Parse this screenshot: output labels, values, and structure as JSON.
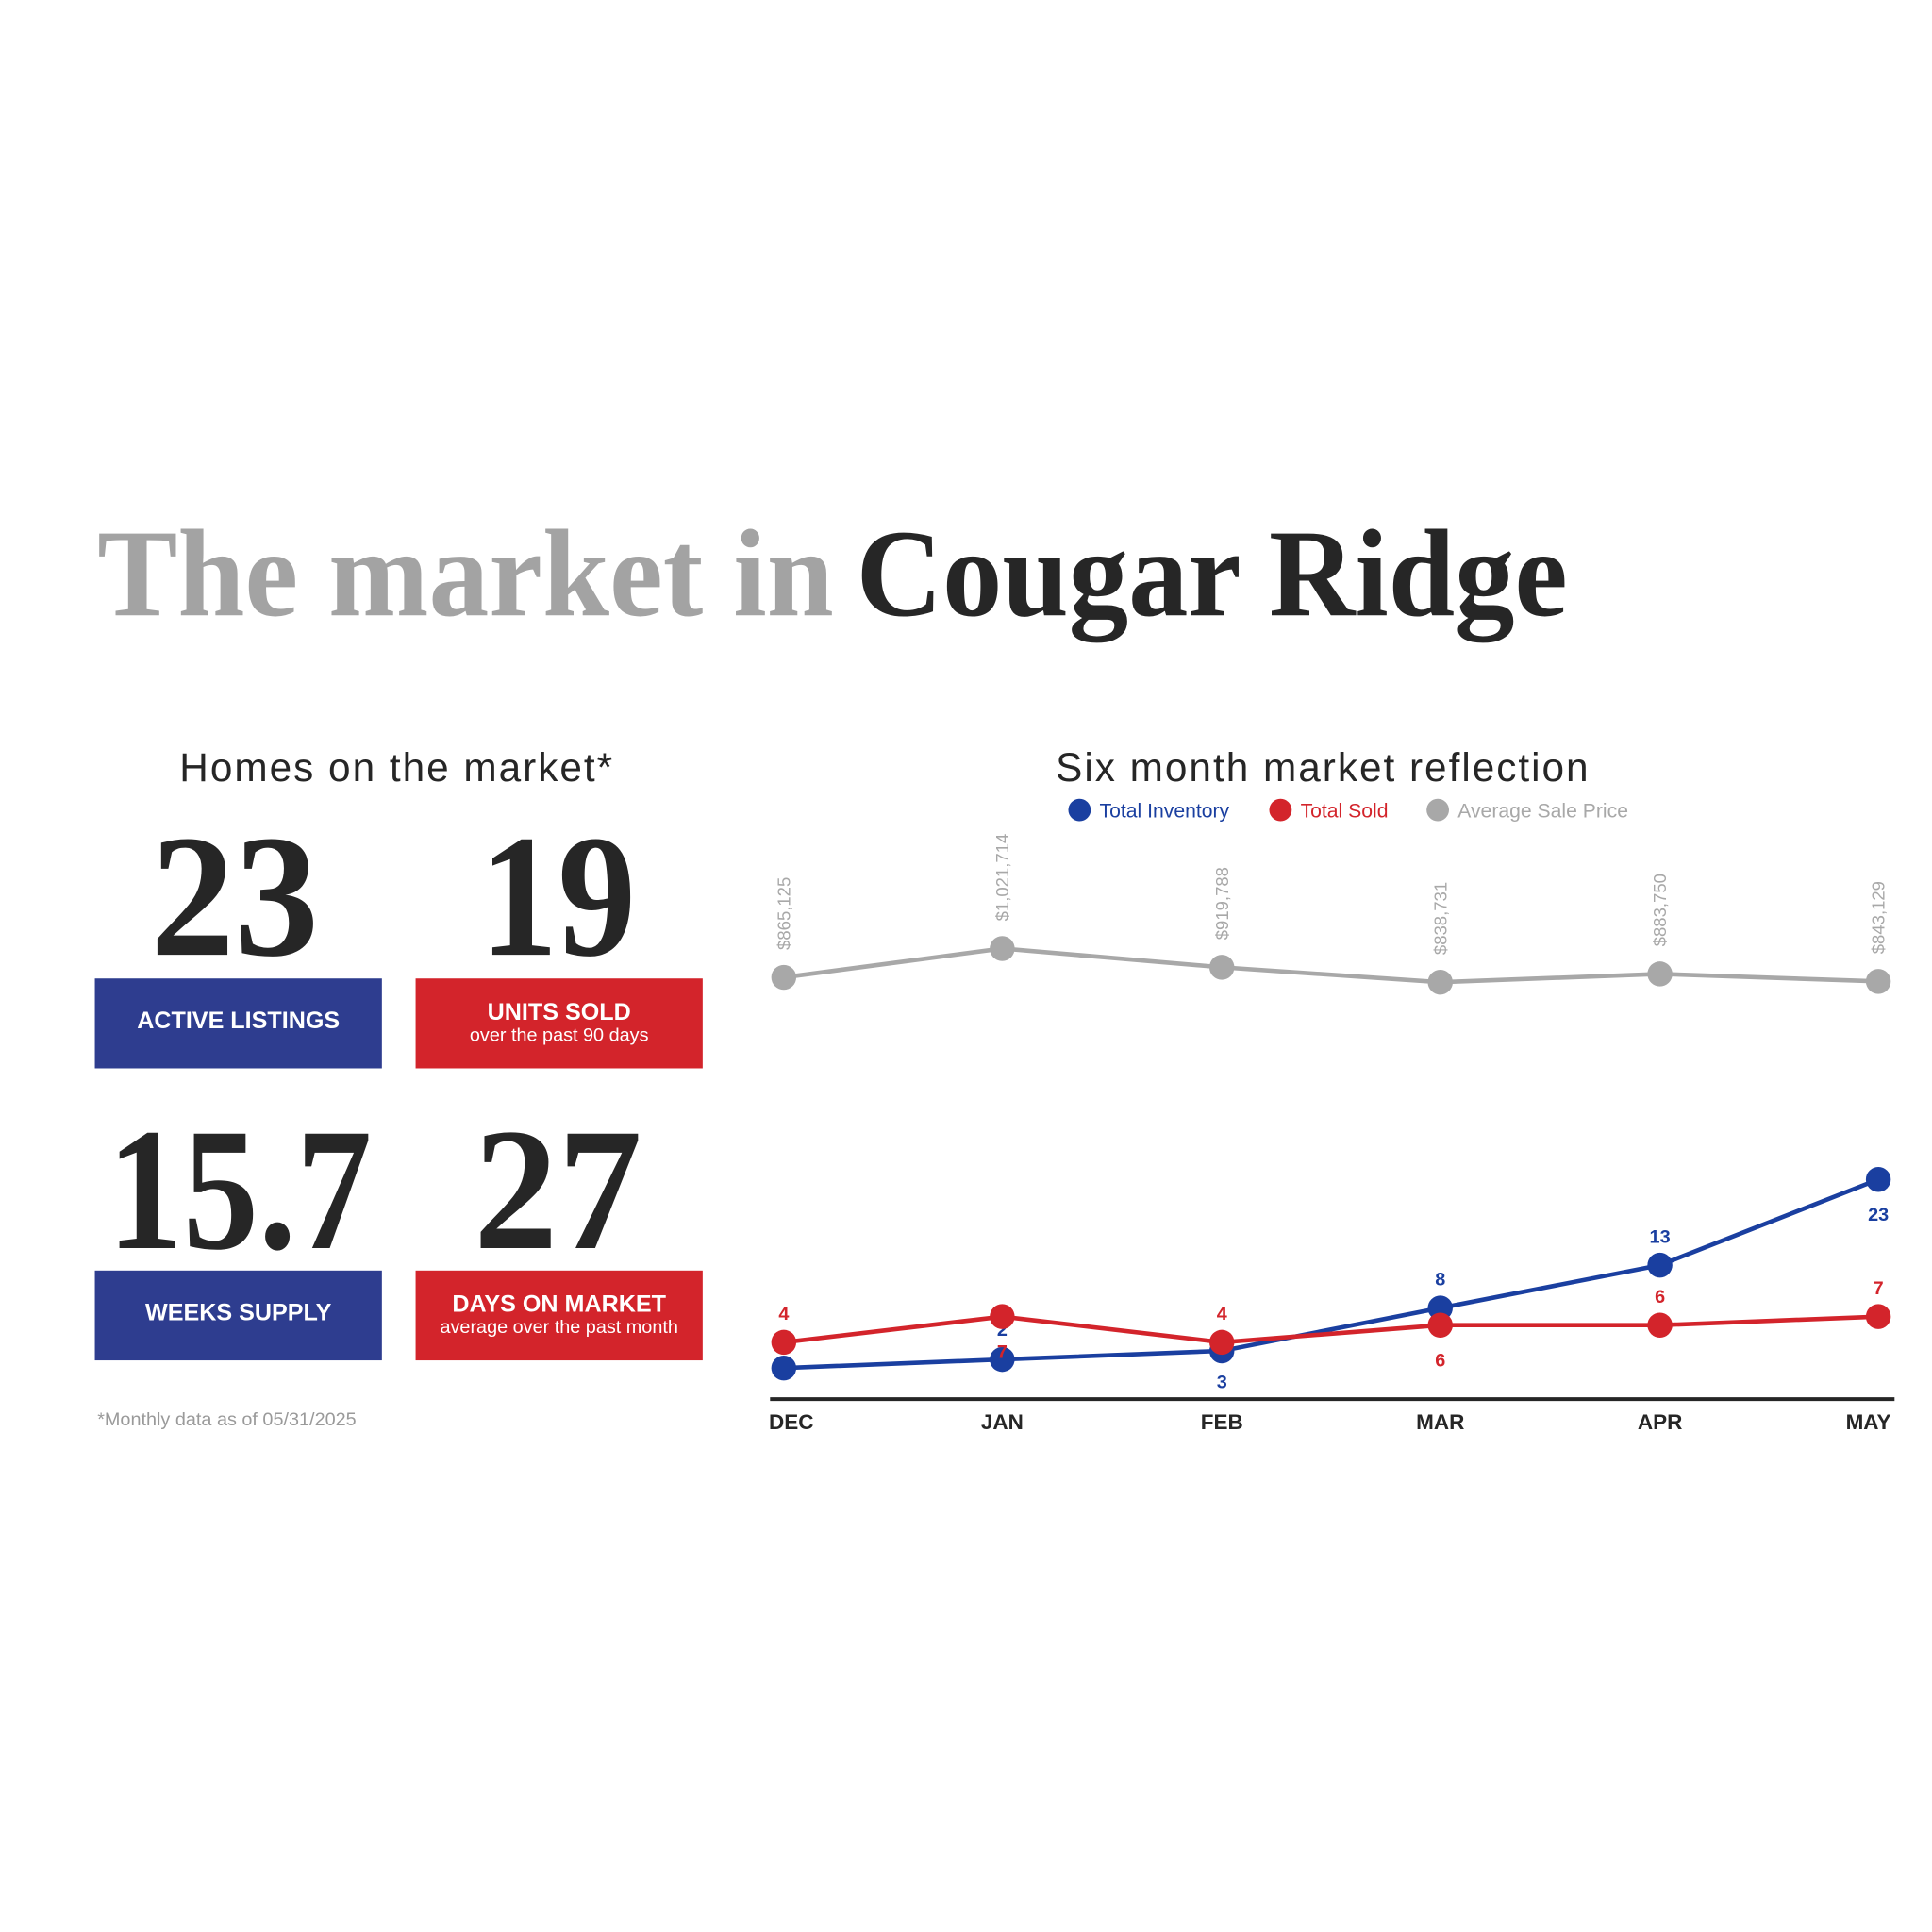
{
  "header": {
    "title_light": "The market in",
    "title_bold": "Cougar Ridge"
  },
  "stats": {
    "title": "Homes on the market*",
    "cards": [
      {
        "value": 23,
        "label": "ACTIVE LISTINGS",
        "color": "#2e3d8f"
      },
      {
        "value": 19,
        "label": "UNITS SOLD",
        "sublabel": "over the past 90 days",
        "color": "#d3242b"
      },
      {
        "value": 15.7,
        "label": "WEEKS SUPPLY",
        "color": "#2e3d8f"
      },
      {
        "value": 27,
        "label": "DAYS ON MARKET",
        "sublabel": "average over the past month",
        "color": "#d3242b"
      }
    ],
    "footnote": "*Monthly data as of 05/31/2025"
  },
  "chart_data": {
    "type": "line",
    "title": "Six month market reflection",
    "categories": [
      "DEC",
      "JAN",
      "FEB",
      "MAR",
      "APR",
      "MAY"
    ],
    "series": [
      {
        "name": "Total Inventory",
        "color": "#1a3fa0",
        "values": [
          1,
          2,
          3,
          8,
          13,
          23
        ]
      },
      {
        "name": "Total Sold",
        "color": "#d3242b",
        "values": [
          4,
          7,
          4,
          6,
          6,
          7
        ]
      },
      {
        "name": "Average Sale Price",
        "color": "#a8a8a8",
        "axis": "y2",
        "values": [
          865125,
          1021714,
          919788,
          838731,
          883750,
          843129
        ],
        "value_labels": [
          "$865,125",
          "$1,021,714",
          "$919,788",
          "$838,731",
          "$883,750",
          "$843,129"
        ]
      }
    ]
  }
}
